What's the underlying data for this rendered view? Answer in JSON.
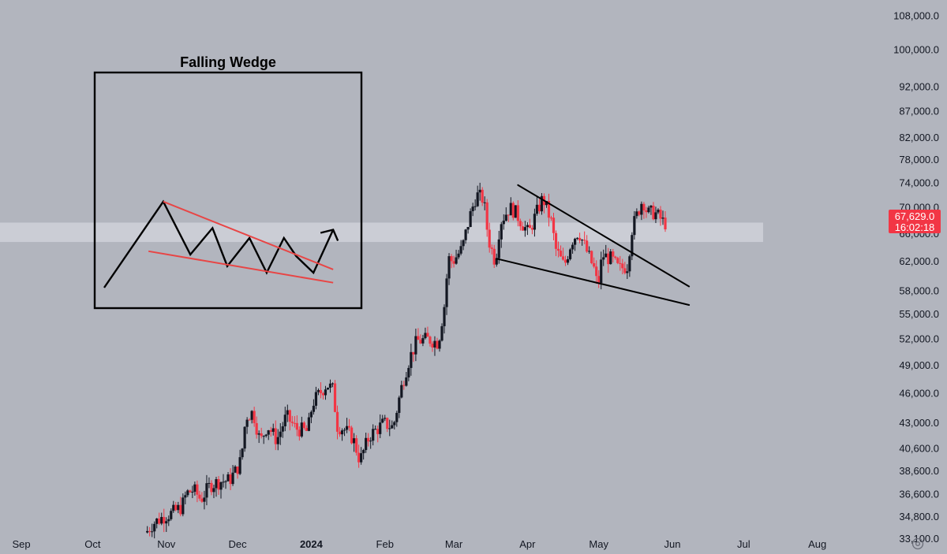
{
  "chart_data": {
    "type": "candlestick",
    "symbol_interval": "1D",
    "y_scale": "log",
    "price_range": [
      32000,
      112000
    ],
    "y_ticks": [
      "108,000.0",
      "100,000.0",
      "92,000.0",
      "87,000.0",
      "82,000.0",
      "78,000.0",
      "74,000.0",
      "70,000.0",
      "66,000.0",
      "62,000.0",
      "58,000.0",
      "55,000.0",
      "52,000.0",
      "49,000.0",
      "46,000.0",
      "43,000.0",
      "40,600.0",
      "38,600.0",
      "36,600.0",
      "34,800.0",
      "33,100.0"
    ],
    "x_ticks": [
      "Sep",
      "Oct",
      "Nov",
      "Dec",
      "2024",
      "Feb",
      "Mar",
      "Apr",
      "May",
      "Jun",
      "Jul",
      "Aug"
    ],
    "x_tick_dates": [
      "2023-09-01",
      "2023-10-01",
      "2023-11-01",
      "2023-12-01",
      "2024-01-01",
      "2024-02-01",
      "2024-03-01",
      "2024-04-01",
      "2024-05-01",
      "2024-06-01",
      "2024-07-01",
      "2024-08-01"
    ],
    "bold_x_tick": "2024",
    "date_range": [
      "2023-08-23",
      "2024-08-29"
    ],
    "current_price": {
      "value": 67629,
      "label": "67,629.0",
      "countdown": "16:02:18",
      "color": "#f23645"
    },
    "highlight_band": {
      "low": 64800,
      "high": 67700
    },
    "up_color": "#131722",
    "down_color": "#f23645",
    "candles_range": [
      "2023-10-24",
      "2024-05-29"
    ],
    "ohlc_anchors": [
      [
        "2023-10-24",
        33600
      ],
      [
        "2023-10-27",
        34300
      ],
      [
        "2023-11-01",
        34900
      ],
      [
        "2023-11-04",
        35100
      ],
      [
        "2023-11-08",
        35600
      ],
      [
        "2023-11-10",
        36700
      ],
      [
        "2023-11-13",
        37000
      ],
      [
        "2023-11-16",
        36200
      ],
      [
        "2023-11-20",
        37400
      ],
      [
        "2023-11-24",
        37700
      ],
      [
        "2023-11-28",
        37800
      ],
      [
        "2023-12-01",
        38700
      ],
      [
        "2023-12-03",
        39600
      ],
      [
        "2023-12-05",
        43700
      ],
      [
        "2023-12-08",
        44100
      ],
      [
        "2023-12-11",
        41200
      ],
      [
        "2023-12-14",
        42800
      ],
      [
        "2023-12-18",
        41400
      ],
      [
        "2023-12-22",
        43700
      ],
      [
        "2023-12-26",
        42500
      ],
      [
        "2023-12-31",
        42200
      ],
      [
        "2024-01-02",
        45000
      ],
      [
        "2024-01-08",
        47000
      ],
      [
        "2024-01-11",
        46300
      ],
      [
        "2024-01-12",
        42800
      ],
      [
        "2024-01-15",
        42500
      ],
      [
        "2024-01-19",
        41600
      ],
      [
        "2024-01-22",
        39500
      ],
      [
        "2024-01-26",
        41800
      ],
      [
        "2024-02-01",
        43000
      ],
      [
        "2024-02-05",
        42600
      ],
      [
        "2024-02-09",
        47200
      ],
      [
        "2024-02-12",
        49900
      ],
      [
        "2024-02-15",
        51800
      ],
      [
        "2024-02-20",
        52000
      ],
      [
        "2024-02-24",
        51600
      ],
      [
        "2024-02-27",
        57000
      ],
      [
        "2024-02-28",
        62500
      ],
      [
        "2024-03-01",
        62000
      ],
      [
        "2024-03-05",
        63800
      ],
      [
        "2024-03-08",
        68300
      ],
      [
        "2024-03-11",
        72100
      ],
      [
        "2024-03-14",
        71400
      ],
      [
        "2024-03-16",
        65300
      ],
      [
        "2024-03-19",
        61900
      ],
      [
        "2024-03-21",
        67800
      ],
      [
        "2024-03-25",
        70000
      ],
      [
        "2024-03-27",
        69500
      ],
      [
        "2024-04-02",
        66000
      ],
      [
        "2024-04-04",
        68000
      ],
      [
        "2024-04-08",
        71600
      ],
      [
        "2024-04-12",
        67300
      ],
      [
        "2024-04-13",
        64000
      ],
      [
        "2024-04-17",
        61300
      ],
      [
        "2024-04-20",
        64900
      ],
      [
        "2024-04-23",
        66400
      ],
      [
        "2024-04-26",
        63800
      ],
      [
        "2024-04-30",
        60600
      ],
      [
        "2024-05-01",
        58200
      ],
      [
        "2024-05-03",
        62900
      ],
      [
        "2024-05-07",
        62300
      ],
      [
        "2024-05-10",
        60900
      ],
      [
        "2024-05-14",
        61500
      ],
      [
        "2024-05-15",
        66200
      ],
      [
        "2024-05-20",
        71400
      ],
      [
        "2024-05-22",
        69100
      ],
      [
        "2024-05-25",
        69300
      ],
      [
        "2024-05-27",
        68500
      ],
      [
        "2024-05-29",
        67629
      ]
    ],
    "trendlines": [
      {
        "name": "wedge-upper",
        "start": [
          "2024-03-28",
          73700
        ],
        "end": [
          "2024-06-08",
          58600
        ]
      },
      {
        "name": "wedge-lower",
        "start": [
          "2024-03-19",
          62400
        ],
        "end": [
          "2024-06-08",
          56200
        ]
      }
    ],
    "inset": {
      "title": "Falling Wedge",
      "zigzag_path": [
        [
          0,
          0
        ],
        [
          24,
          52
        ],
        [
          35,
          20
        ],
        [
          44,
          36
        ],
        [
          50,
          13
        ],
        [
          59,
          30
        ],
        [
          66,
          9
        ],
        [
          73,
          30
        ],
        [
          78,
          19
        ],
        [
          85,
          9
        ],
        [
          93,
          35
        ]
      ],
      "upper_line": [
        [
          24,
          52
        ],
        [
          93,
          11
        ]
      ],
      "lower_line": [
        [
          18,
          22
        ],
        [
          93,
          3
        ]
      ],
      "line_color": "#e84545"
    }
  }
}
